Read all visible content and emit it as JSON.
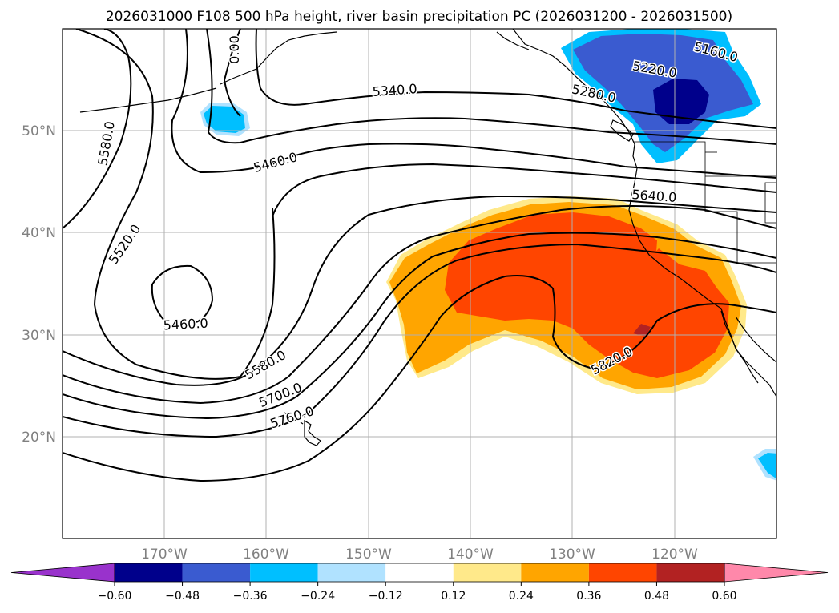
{
  "title": "2026031000 F108 500 hPa height, river basin precipitation PC (2026031200 - 2026031500)",
  "longitude_labels": [
    "170°W",
    "160°W",
    "150°W",
    "140°W",
    "130°W",
    "120°W"
  ],
  "latitude_labels": [
    "50°N",
    "40°N",
    "30°N",
    "20°N"
  ],
  "height_contour_labels": [
    {
      "text": "5580.0",
      "rot": -80
    },
    {
      "text": "5520.0",
      "rot": -55
    },
    {
      "text": "5460.0",
      "rot": -3
    },
    {
      "text": "5580.0",
      "rot": -30
    },
    {
      "text": "5700.0",
      "rot": -22
    },
    {
      "text": "5760.0",
      "rot": -18
    },
    {
      "text": "5460.0",
      "rot": -15
    },
    {
      "text": "5340.0",
      "rot": -4
    },
    {
      "text": "5220.0",
      "rot": 10
    },
    {
      "text": "5160.0",
      "rot": 15
    },
    {
      "text": "5640.0",
      "rot": 4
    },
    {
      "text": "5820.0",
      "rot": -28
    },
    {
      "text": "5280.0",
      "rot": 12
    },
    {
      "text": "0.00",
      "rot": -90
    }
  ],
  "colorbar": {
    "ticks": [
      "−0.60",
      "−0.48",
      "−0.36",
      "−0.24",
      "−0.12",
      "0.12",
      "0.24",
      "0.36",
      "0.48",
      "0.60"
    ],
    "colors": [
      "#9932cc",
      "#00008b",
      "#3a5bd0",
      "#00bfff",
      "#b0e2ff",
      "#ffffff",
      "#ffe98a",
      "#ffa500",
      "#ff4500",
      "#b22222",
      "#ff88aa"
    ]
  },
  "colors": {
    "strong_negative": "#00008b",
    "moderate_negative": "#3a5bd0",
    "weak_negative": "#00bfff",
    "weak_positive": "#ffe98a",
    "moderate_positive": "#ffa500",
    "strong_positive": "#ff4500",
    "very_strong_positive": "#b22222"
  }
}
